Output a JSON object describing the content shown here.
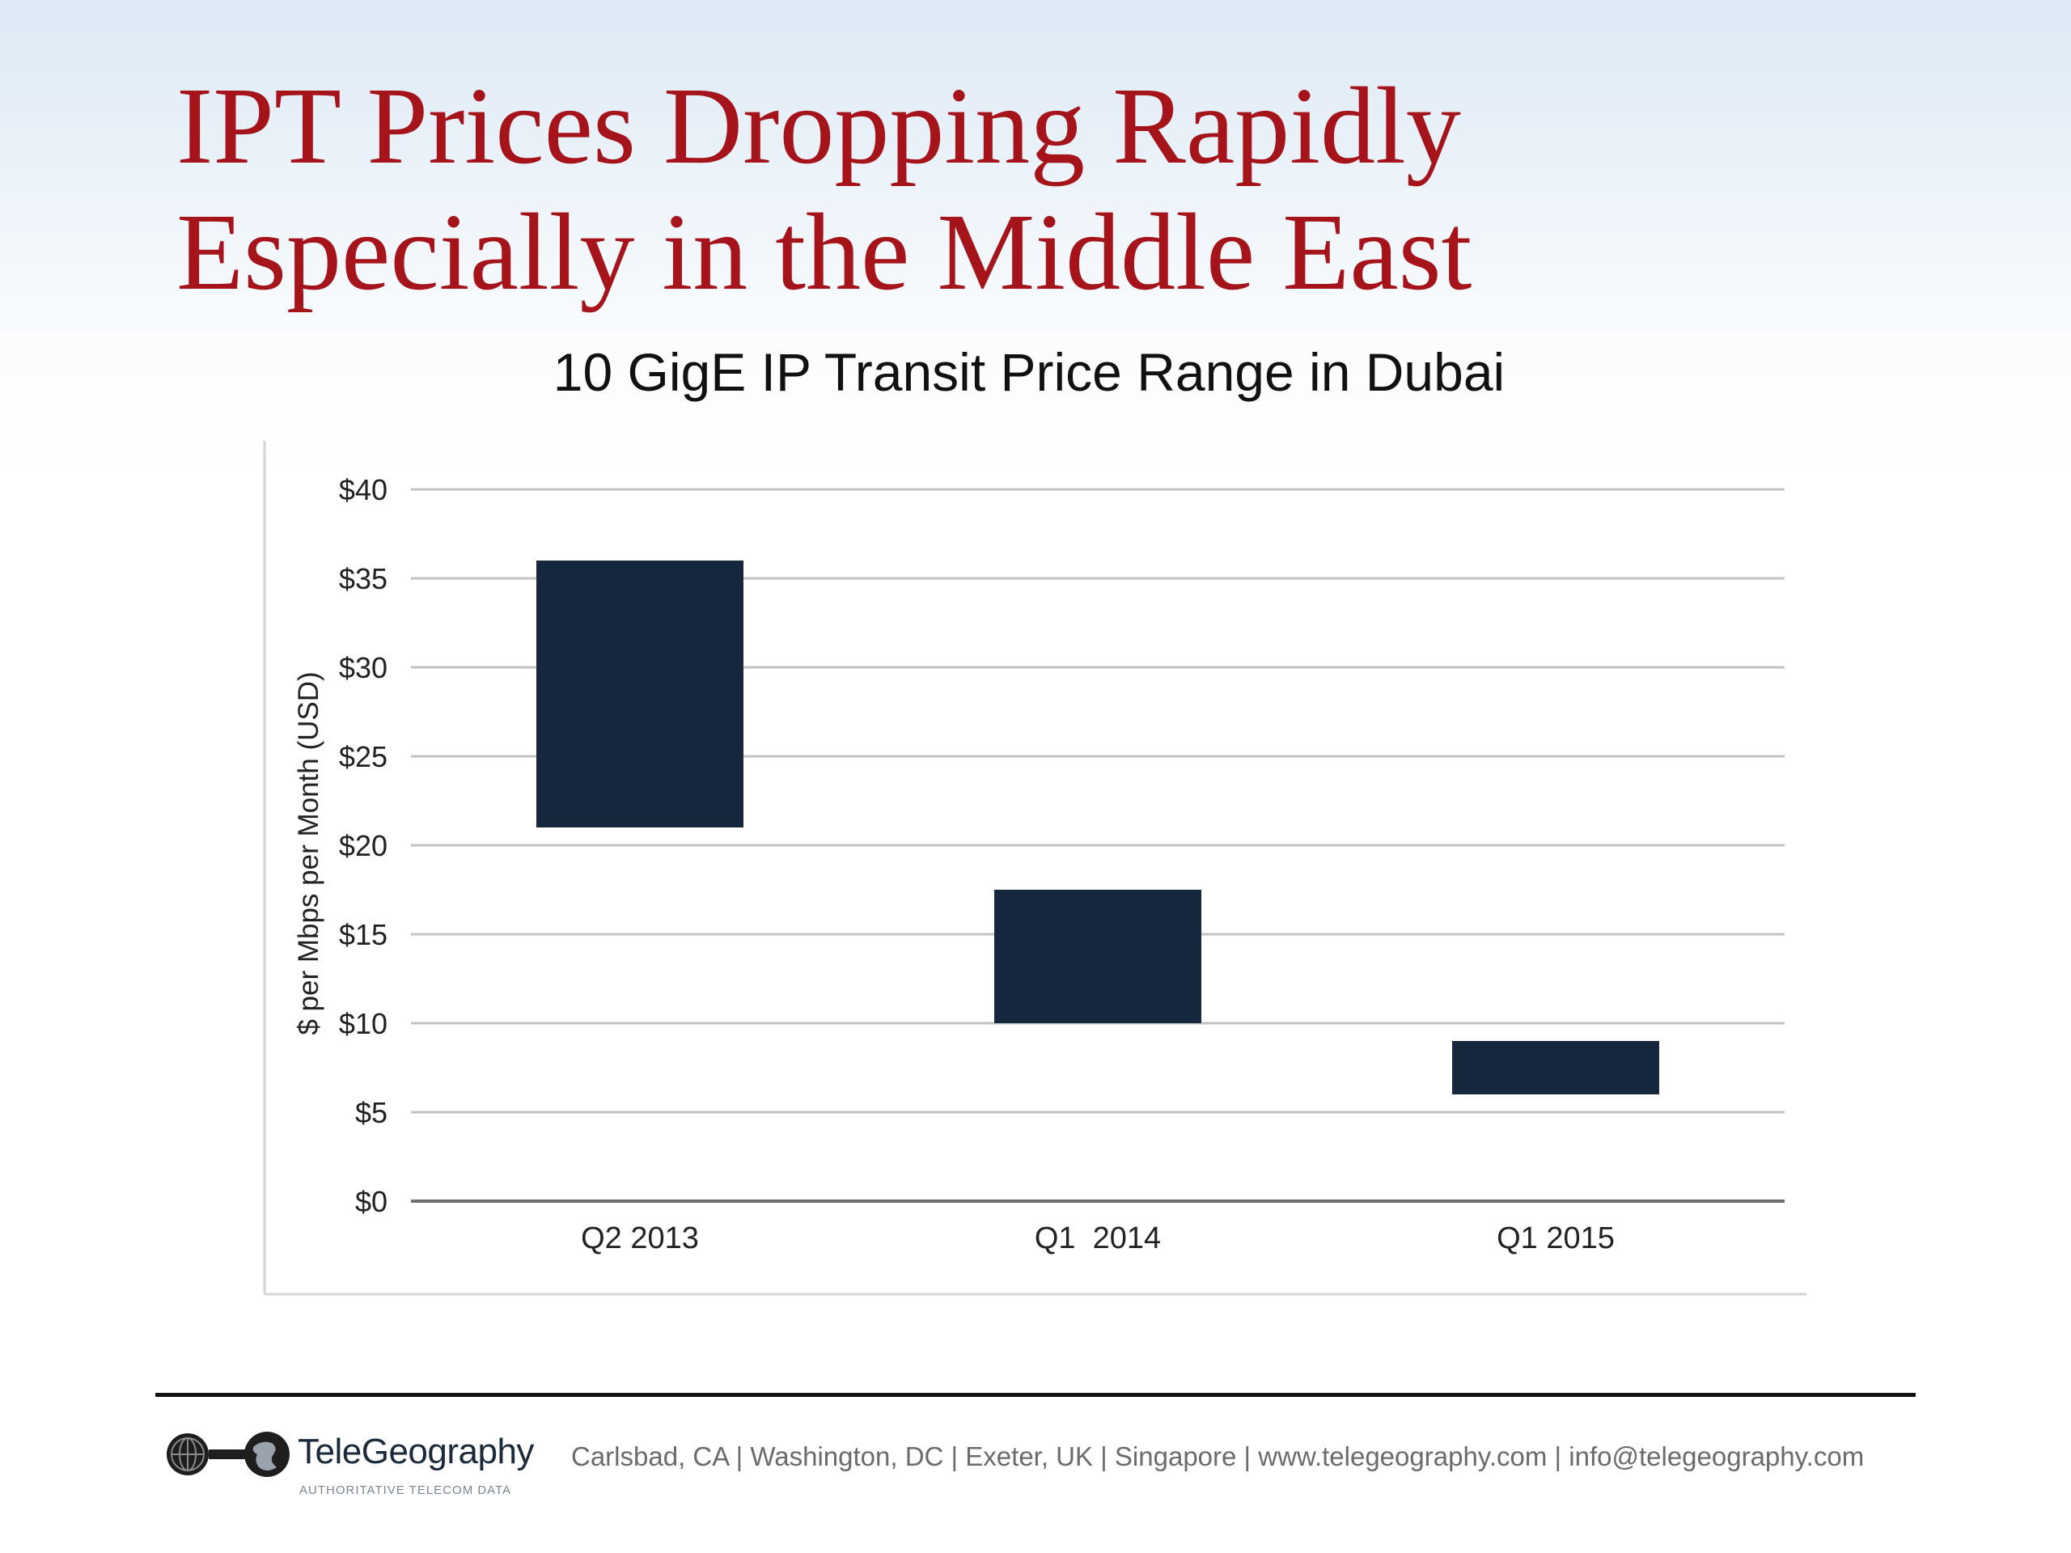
{
  "slide": {
    "title_line1": "IPT Prices Dropping Rapidly",
    "title_line2": "Especially in the Middle East"
  },
  "chart_data": {
    "type": "bar",
    "subtype": "floating-range",
    "title": "10 GigE IP Transit Price Range in Dubai",
    "ylabel": "$ per Mbps per Month (USD)",
    "xlabel": "",
    "ylim": [
      0,
      40
    ],
    "yticks": [
      0,
      5,
      10,
      15,
      20,
      25,
      30,
      35,
      40
    ],
    "ytick_labels": [
      "$0",
      "$5",
      "$10",
      "$15",
      "$20",
      "$25",
      "$30",
      "$35",
      "$40"
    ],
    "categories": [
      "Q2 2013",
      "Q1  2014",
      "Q1 2015"
    ],
    "ranges": [
      {
        "low": 21,
        "high": 36
      },
      {
        "low": 10,
        "high": 17.5
      },
      {
        "low": 6,
        "high": 9
      }
    ],
    "bar_color": "#14273d",
    "grid": true,
    "legend": "none"
  },
  "footer": {
    "brand": "TeleGeography",
    "tagline": "AUTHORITATIVE TELECOM DATA",
    "contact": "Carlsbad, CA | Washington, DC | Exeter, UK | Singapore | www.telegeography.com | info@telegeography.com"
  }
}
